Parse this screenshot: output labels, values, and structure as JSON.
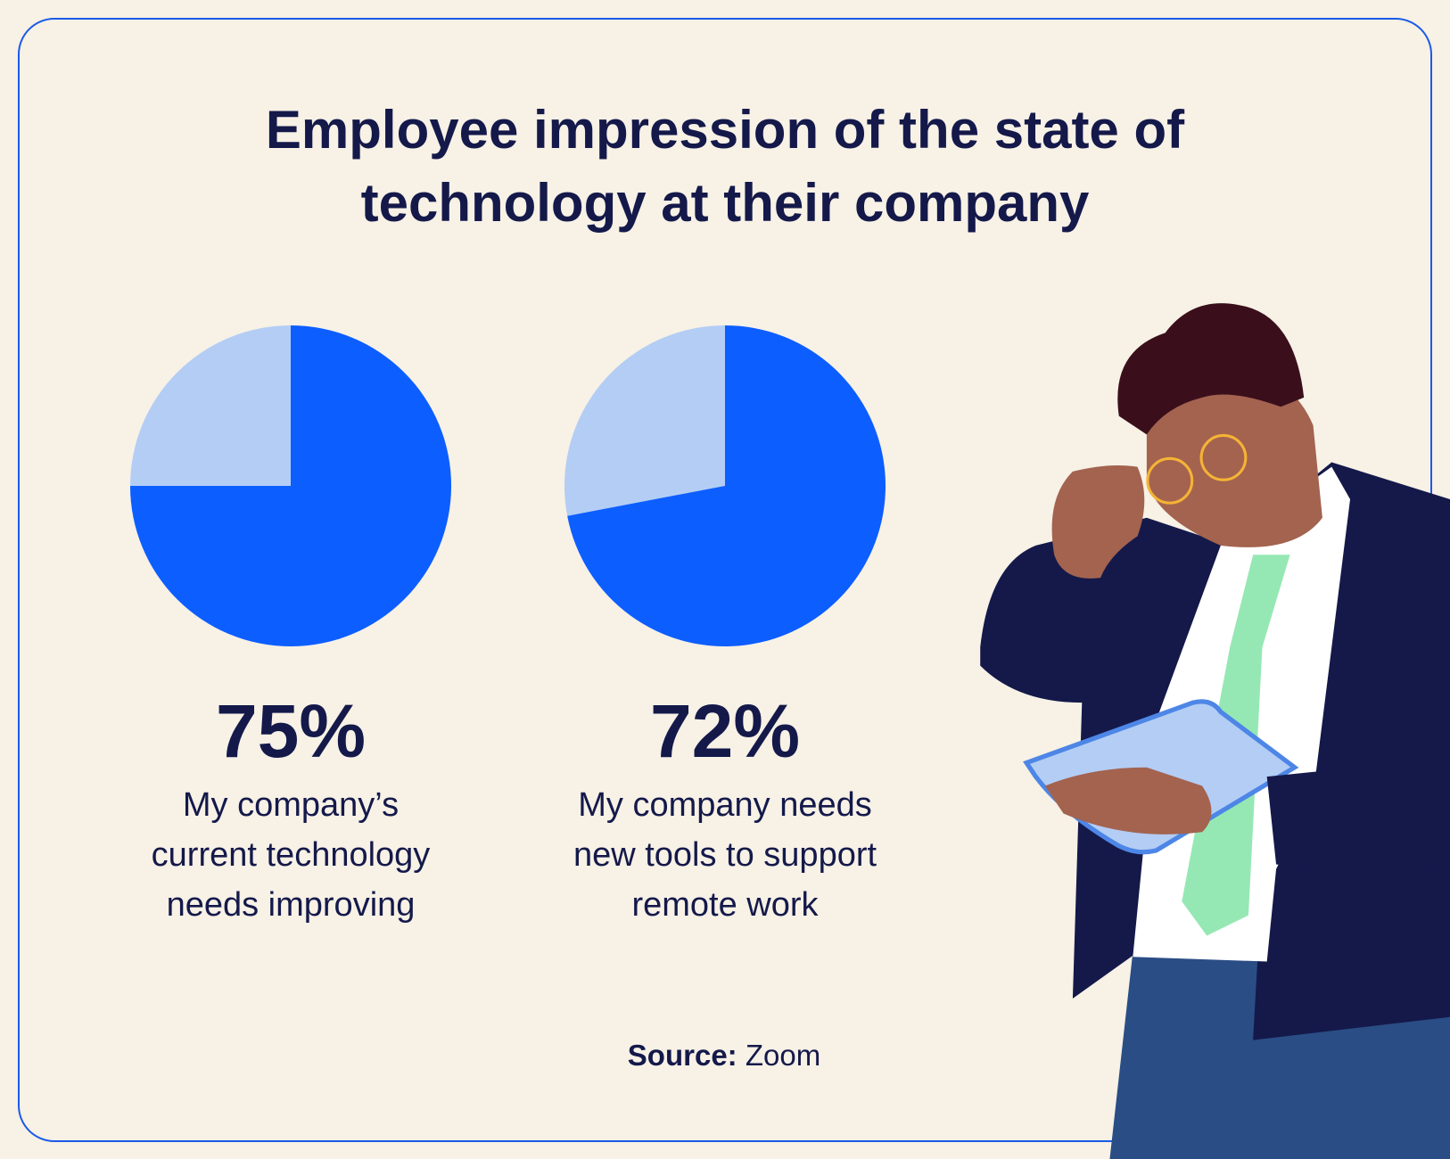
{
  "title": "Employee impression of the state of technology at their company",
  "chart_data": [
    {
      "type": "pie",
      "values": [
        75
      ],
      "value_labels": [
        "75%"
      ],
      "caption": "My company’s current technology needs improving",
      "color": "#0d5eff",
      "track_color": "#b3cdf5"
    },
    {
      "type": "pie",
      "values": [
        72
      ],
      "value_labels": [
        "72%"
      ],
      "caption": "My company needs new tools to support remote work",
      "color": "#0d5eff",
      "track_color": "#b3cdf5"
    }
  ],
  "source": {
    "label": "Source:",
    "text": "Zoom"
  }
}
